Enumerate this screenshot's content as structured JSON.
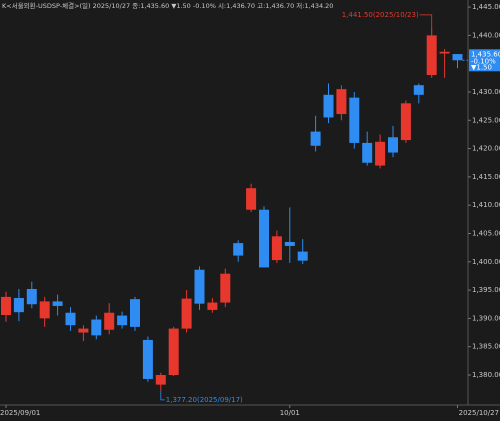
{
  "chart_data": {
    "type": "candlestick",
    "title": "K<서울외환-USDSP-체결>(일) 2025/10/27 종:1,435.60 ▼1.50 -0.10% 시:1,436.70 고:1,436.70 저:1,434.20",
    "categories": [
      "2025/09/01",
      null,
      null,
      null,
      null,
      null,
      null,
      null,
      null,
      null,
      null,
      null,
      null,
      null,
      null,
      null,
      null,
      null,
      null,
      null,
      null,
      null,
      "10/01",
      null,
      null,
      null,
      null,
      null,
      null,
      null,
      null,
      null,
      null,
      null,
      null,
      "2025/10/27"
    ],
    "open": [
      1390.6,
      1393.6,
      1395.2,
      1390.0,
      1393.0,
      1391.0,
      1387.5,
      1389.8,
      1388.0,
      1390.5,
      1393.4,
      1386.2,
      1378.3,
      1380.0,
      1388.2,
      1398.6,
      1391.5,
      1392.8,
      1403.3,
      1409.2,
      1409.2,
      1400.3,
      1403.5,
      1401.8,
      1423.0,
      1429.5,
      1426.1,
      1429.0,
      1421.0,
      1417.0,
      1422.0,
      1421.5,
      1431.2,
      1433.0,
      1436.8,
      1436.7
    ],
    "high": [
      1394.7,
      1395.2,
      1396.5,
      1393.8,
      1394.2,
      1392.0,
      1388.8,
      1390.5,
      1392.7,
      1391.2,
      1393.8,
      1386.8,
      1380.4,
      1388.5,
      1395.0,
      1399.2,
      1393.6,
      1398.8,
      1403.8,
      1413.8,
      1409.8,
      1405.5,
      1409.6,
      1404.0,
      1425.8,
      1431.5,
      1431.2,
      1430.0,
      1423.0,
      1422.5,
      1424.0,
      1428.5,
      1431.5,
      1441.5,
      1437.6,
      1436.7
    ],
    "low": [
      1389.4,
      1389.5,
      1391.8,
      1388.5,
      1390.5,
      1387.8,
      1386.0,
      1386.3,
      1387.2,
      1388.2,
      1387.8,
      1378.8,
      1377.2,
      1379.8,
      1387.5,
      1391.5,
      1391.0,
      1392.0,
      1400.0,
      1408.8,
      1399.0,
      1399.8,
      1399.8,
      1399.6,
      1419.5,
      1424.5,
      1425.0,
      1420.0,
      1417.0,
      1416.5,
      1418.5,
      1421.0,
      1428.0,
      1432.5,
      1432.5,
      1434.2
    ],
    "close": [
      1393.8,
      1391.1,
      1392.5,
      1393.0,
      1392.2,
      1388.8,
      1388.2,
      1387.0,
      1391.0,
      1388.8,
      1388.5,
      1379.3,
      1380.0,
      1388.2,
      1393.5,
      1392.6,
      1392.8,
      1397.9,
      1401.1,
      1413.0,
      1399.0,
      1404.5,
      1402.8,
      1400.2,
      1420.5,
      1425.5,
      1430.5,
      1421.0,
      1417.5,
      1421.2,
      1419.3,
      1428.0,
      1429.5,
      1440.0,
      1437.1,
      1435.6
    ],
    "up_color": "#e8382e",
    "down_color": "#2e8cf2",
    "ylim": [
      1374.7,
      1446.25
    ],
    "yticks": [
      {
        "value": 1380,
        "label": "1,380.00"
      },
      {
        "value": 1385,
        "label": "1,385.00"
      },
      {
        "value": 1390,
        "label": "1,390.00"
      },
      {
        "value": 1395,
        "label": "1,395.00"
      },
      {
        "value": 1400,
        "label": "1,400.00"
      },
      {
        "value": 1405,
        "label": "1,405.00"
      },
      {
        "value": 1410,
        "label": "1,410.00"
      },
      {
        "value": 1415,
        "label": "1,415.00"
      },
      {
        "value": 1420,
        "label": "1,420.00"
      },
      {
        "value": 1425,
        "label": "1,425.00"
      },
      {
        "value": 1430,
        "label": "1,430.00"
      },
      {
        "value": 1440,
        "label": "1,440.00"
      },
      {
        "value": 1445,
        "label": "1,445.00"
      }
    ],
    "annotations": [
      {
        "text": "1,441.50(2025/10/23)",
        "index": 33,
        "value": 1441.5,
        "side": "above"
      },
      {
        "text": "1,377.20(2025/09/17)",
        "index": 12,
        "value": 1377.2,
        "side": "below"
      }
    ],
    "last_price": {
      "value": 1435.6,
      "label": "1,435.60",
      "change_pct": "-0.10%",
      "change": "▼1.50"
    }
  }
}
